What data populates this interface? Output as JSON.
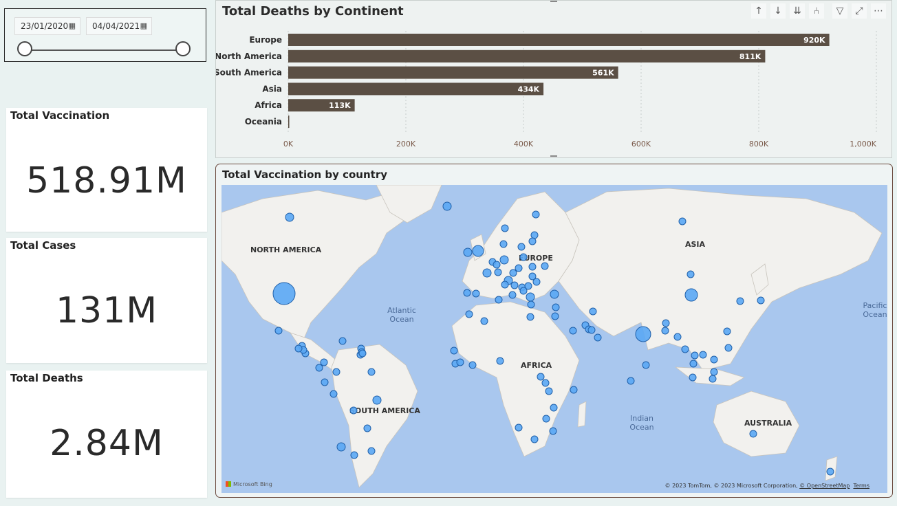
{
  "slicer": {
    "start_date": "23/01/2020",
    "end_date": "04/04/2021",
    "calendar_icon": "calendar-icon"
  },
  "cards": [
    {
      "title": "Total Vaccination",
      "value": "518.91M"
    },
    {
      "title": "Total Cases",
      "value": "131M"
    },
    {
      "title": "Total Deaths",
      "value": "2.84M"
    }
  ],
  "bar_chart": {
    "title": "Total Deaths by Continent",
    "toolbar_icons": [
      "arrow-up-icon",
      "arrow-down-icon",
      "double-arrow-down-icon",
      "expand-hierarchy-icon",
      "filter-icon",
      "focus-mode-icon",
      "more-options-icon"
    ],
    "bar_color": "#5b4f44"
  },
  "chart_data": {
    "type": "bar",
    "orientation": "horizontal",
    "title": "Total Deaths by Continent",
    "categories": [
      "Europe",
      "North America",
      "South America",
      "Asia",
      "Africa",
      "Oceania"
    ],
    "values": [
      920000,
      811000,
      561000,
      434000,
      113000,
      1000
    ],
    "data_labels": [
      "920K",
      "811K",
      "561K",
      "434K",
      "113K",
      ""
    ],
    "xlim": [
      0,
      1000000
    ],
    "x_ticks": [
      0,
      200000,
      400000,
      600000,
      800000,
      1000000
    ],
    "x_tick_labels": [
      "0K",
      "200K",
      "400K",
      "600K",
      "800K",
      "1,000K"
    ],
    "grid": true
  },
  "map": {
    "title": "Total Vaccination by country",
    "continent_labels": [
      "NORTH AMERICA",
      "EUROPE",
      "ASIA",
      "AFRICA",
      "SOUTH AMERICA",
      "AUSTRALIA"
    ],
    "ocean_labels": [
      [
        "Atlantic",
        "Ocean"
      ],
      [
        "Indian",
        "Ocean"
      ],
      [
        "Pacific",
        "Ocean"
      ]
    ],
    "attribution": "© 2023 TomTom, © 2023 Microsoft Corporation, ",
    "osm_link": "© OpenStreetMap",
    "terms_link": "Terms",
    "bing_logo": "Microsoft Bing",
    "bubble_color": "#5aa7f4"
  }
}
